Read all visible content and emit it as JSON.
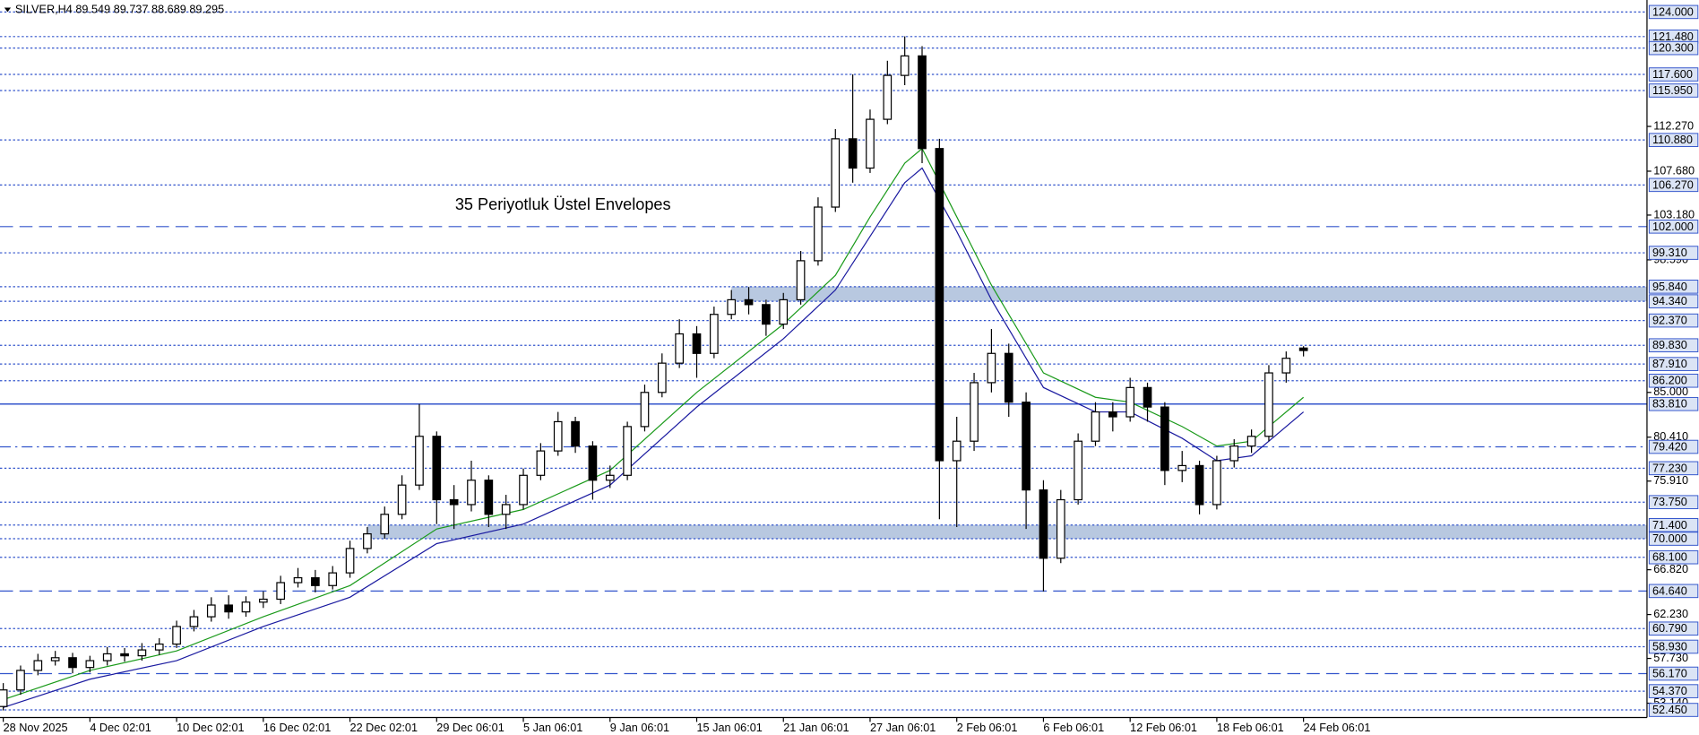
{
  "chart_data": {
    "type": "candlestick",
    "title": "SILVER,H4  89.549 89.737 88.689 89.295",
    "annotation": "35 Periyotluk Üstel Envelopes",
    "annotation_color": "#3a6fd8",
    "categories": [
      "28 Nov 2025",
      null,
      null,
      null,
      null,
      "4 Dec 02:01",
      null,
      null,
      null,
      null,
      "10 Dec 02:01",
      null,
      null,
      null,
      null,
      "16 Dec 02:01",
      null,
      null,
      null,
      null,
      "22 Dec 02:01",
      null,
      null,
      null,
      null,
      "29 Dec 06:01",
      null,
      null,
      null,
      null,
      "5 Jan 06:01",
      null,
      null,
      null,
      null,
      "9 Jan 06:01",
      null,
      null,
      null,
      null,
      "15 Jan 06:01",
      null,
      null,
      null,
      null,
      "21 Jan 06:01",
      null,
      null,
      null,
      null,
      "27 Jan 06:01",
      null,
      null,
      null,
      null,
      "2 Feb 06:01",
      null,
      null,
      null,
      null,
      "6 Feb 06:01",
      null,
      null,
      null,
      null,
      "12 Feb 06:01",
      null,
      null,
      null,
      null,
      "18 Feb 06:01",
      null,
      null,
      null,
      null,
      "24 Feb 06:01"
    ],
    "open": [
      52.8,
      54.5,
      56.5,
      57.5,
      57.8,
      56.8,
      57.5,
      58.2,
      58.0,
      58.6,
      59.2,
      61.0,
      62.0,
      63.2,
      62.5,
      63.5,
      63.8,
      65.5,
      66.0,
      65.2,
      66.5,
      69.0,
      70.5,
      72.5,
      75.5,
      80.5,
      74.0,
      73.5,
      76.0,
      72.5,
      73.5,
      76.5,
      79.0,
      82.0,
      79.5,
      76.0,
      76.5,
      81.5,
      85.0,
      88.0,
      91.0,
      89.0,
      93.0,
      94.5,
      94.0,
      92.0,
      94.5,
      98.5,
      104.0,
      111.0,
      108.0,
      113.0,
      117.5,
      119.5,
      110.0,
      78.0,
      80.0,
      86.0,
      89.0,
      84.0,
      75.0,
      68.0,
      74.0,
      80.0,
      83.0,
      82.5,
      85.5,
      83.5,
      77.0,
      77.5,
      73.5,
      78.0,
      79.5,
      80.5,
      87.0,
      89.549
    ],
    "high": [
      55.2,
      57.0,
      58.2,
      58.5,
      58.3,
      58.0,
      58.9,
      58.8,
      59.3,
      59.8,
      61.6,
      62.7,
      64.0,
      64.2,
      64.1,
      64.6,
      66.2,
      67.0,
      66.8,
      67.2,
      69.8,
      71.2,
      73.3,
      76.5,
      83.8,
      81.0,
      75.5,
      78.0,
      76.5,
      74.5,
      77.2,
      79.8,
      83.0,
      82.5,
      80.0,
      77.5,
      82.0,
      85.8,
      89.0,
      92.5,
      91.8,
      93.8,
      95.5,
      95.8,
      94.5,
      95.2,
      99.5,
      105.0,
      112.0,
      117.6,
      114.0,
      119.0,
      121.5,
      120.5,
      111.0,
      82.5,
      87.0,
      91.5,
      90.0,
      85.0,
      76.0,
      75.0,
      80.8,
      84.0,
      84.0,
      86.5,
      86.0,
      84.0,
      79.0,
      78.0,
      78.5,
      80.2,
      81.2,
      87.8,
      89.2,
      89.737
    ],
    "low": [
      52.4,
      54.0,
      56.0,
      57.0,
      56.2,
      56.3,
      57.0,
      57.4,
      57.5,
      58.1,
      58.8,
      60.5,
      61.5,
      61.8,
      62.0,
      62.9,
      63.3,
      65.0,
      64.5,
      64.8,
      66.0,
      68.5,
      70.0,
      72.0,
      75.0,
      71.5,
      71.0,
      72.8,
      71.2,
      71.0,
      73.0,
      76.0,
      78.5,
      78.8,
      74.0,
      75.2,
      76.0,
      81.0,
      84.5,
      87.5,
      86.5,
      88.5,
      92.5,
      93.0,
      90.8,
      91.5,
      94.0,
      98.0,
      103.5,
      106.5,
      107.5,
      112.5,
      116.5,
      108.5,
      72.0,
      71.2,
      79.0,
      85.0,
      82.5,
      71.0,
      64.6,
      67.5,
      73.5,
      79.5,
      81.0,
      82.0,
      82.0,
      75.5,
      75.8,
      72.5,
      73.0,
      77.3,
      78.8,
      80.0,
      86.0,
      88.689
    ],
    "close": [
      54.5,
      56.5,
      57.5,
      57.8,
      56.8,
      57.5,
      58.2,
      58.0,
      58.6,
      59.2,
      61.0,
      62.0,
      63.2,
      62.5,
      63.5,
      63.8,
      65.5,
      66.0,
      65.2,
      66.5,
      69.0,
      70.5,
      72.5,
      75.5,
      80.5,
      74.0,
      73.5,
      76.0,
      72.5,
      73.5,
      76.5,
      79.0,
      82.0,
      79.5,
      76.0,
      76.5,
      81.5,
      85.0,
      88.0,
      91.0,
      89.0,
      93.0,
      94.5,
      94.0,
      92.0,
      94.5,
      98.5,
      104.0,
      111.0,
      108.0,
      113.0,
      117.5,
      119.5,
      110.0,
      78.0,
      80.0,
      86.0,
      89.0,
      84.0,
      75.0,
      68.0,
      74.0,
      80.0,
      83.0,
      82.5,
      85.5,
      83.5,
      77.0,
      77.5,
      73.5,
      78.0,
      79.5,
      80.5,
      87.0,
      88.5,
      89.295
    ],
    "up_color": "#ffffff",
    "down_color": "#000000",
    "ylim": [
      51.67,
      125.23
    ],
    "yticks": [
      {
        "value": 112.27,
        "label": "112.270"
      },
      {
        "value": 107.68,
        "label": "107.680"
      },
      {
        "value": 103.18,
        "label": "103.180"
      },
      {
        "value": 98.59,
        "label": "98.590"
      },
      {
        "value": 85,
        "label": "85.000"
      },
      {
        "value": 80.41,
        "label": "80.410"
      },
      {
        "value": 75.91,
        "label": "75.910"
      },
      {
        "value": 66.82,
        "label": "66.820"
      },
      {
        "value": 62.23,
        "label": "62.230"
      },
      {
        "value": 57.73,
        "label": "57.730"
      },
      {
        "value": 53.14,
        "label": "53.140"
      }
    ],
    "level_color": "#3355cc",
    "levels": [
      {
        "value": 124,
        "label": "124.000",
        "style": "dotted"
      },
      {
        "value": 121.48,
        "label": "121.480",
        "style": "dotted"
      },
      {
        "value": 120.3,
        "label": "120.300",
        "style": "dotted"
      },
      {
        "value": 117.6,
        "label": "117.600",
        "style": "dotted"
      },
      {
        "value": 115.95,
        "label": "115.950",
        "style": "dotted"
      },
      {
        "value": 110.88,
        "label": "110.880",
        "style": "dotted"
      },
      {
        "value": 106.27,
        "label": "106.270",
        "style": "dotted"
      },
      {
        "value": 102,
        "label": "102.000",
        "style": "dashed"
      },
      {
        "value": 99.31,
        "label": "99.310",
        "style": "dotted"
      },
      {
        "value": 95.84,
        "label": "95.840",
        "style": "dotted"
      },
      {
        "value": 94.34,
        "label": "94.340",
        "style": "dotted"
      },
      {
        "value": 92.37,
        "label": "92.370",
        "style": "dotted"
      },
      {
        "value": 89.83,
        "label": "89.830",
        "style": "dotted"
      },
      {
        "value": 87.91,
        "label": "87.910",
        "style": "dotted"
      },
      {
        "value": 86.2,
        "label": "86.200",
        "style": "dotted"
      },
      {
        "value": 83.81,
        "label": "83.810",
        "style": "solid"
      },
      {
        "value": 79.42,
        "label": "79.420",
        "style": "dashdot"
      },
      {
        "value": 77.23,
        "label": "77.230",
        "style": "dotted"
      },
      {
        "value": 73.75,
        "label": "73.750",
        "style": "dotted"
      },
      {
        "value": 71.4,
        "label": "71.400",
        "style": "dotted"
      },
      {
        "value": 70,
        "label": "70.000",
        "style": "dotted"
      },
      {
        "value": 68.1,
        "label": "68.100",
        "style": "dotted"
      },
      {
        "value": 64.64,
        "label": "64.640",
        "style": "dashed"
      },
      {
        "value": 60.79,
        "label": "60.790",
        "style": "dotted"
      },
      {
        "value": 58.93,
        "label": "58.930",
        "style": "dotted"
      },
      {
        "value": 56.17,
        "label": "56.170",
        "style": "dashed"
      },
      {
        "value": 54.37,
        "label": "54.370",
        "style": "dotted"
      },
      {
        "value": 52.45,
        "label": "52.450",
        "style": "dotted"
      }
    ],
    "zone_color": "#b8c8e0",
    "zones": [
      {
        "from": 94.34,
        "to": 95.84,
        "start": 42
      },
      {
        "from": 70,
        "to": 71.4,
        "start": 21
      }
    ],
    "envelopes": [
      {
        "color": "#1a9a1a",
        "x": [
          0,
          5,
          10,
          15,
          20,
          25,
          30,
          35,
          40,
          45,
          48,
          50,
          52,
          53,
          55,
          57,
          60,
          63,
          65,
          68,
          70,
          72,
          75
        ],
        "values": [
          53.5,
          56.5,
          58.5,
          62.0,
          65.2,
          71.0,
          73.0,
          77.0,
          85.0,
          92.0,
          97.0,
          103.0,
          108.5,
          110.0,
          103.0,
          96.0,
          87.0,
          84.5,
          84.0,
          81.5,
          79.5,
          80.0,
          84.5
        ]
      },
      {
        "color": "#1a1aa0",
        "x": [
          0,
          5,
          10,
          15,
          20,
          25,
          30,
          35,
          40,
          45,
          48,
          50,
          52,
          53,
          55,
          57,
          60,
          63,
          65,
          68,
          70,
          72,
          75
        ],
        "values": [
          52.7,
          55.6,
          57.5,
          61.0,
          64.0,
          69.5,
          71.5,
          75.5,
          83.5,
          90.5,
          95.5,
          101.0,
          106.5,
          108.0,
          101.5,
          94.5,
          85.5,
          83.0,
          83.0,
          80.3,
          78.0,
          78.5,
          83.0
        ]
      }
    ]
  }
}
